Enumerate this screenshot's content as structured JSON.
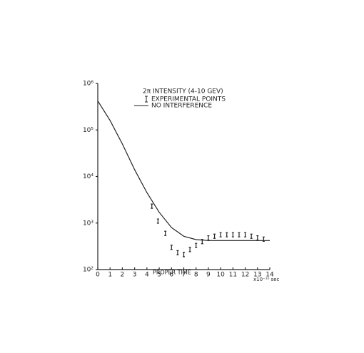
{
  "chart_data": {
    "type": "line",
    "legend_title": "2π INTENSITY (4-10 GEV)",
    "xlabel": "PROPER TIME",
    "xunit": "x10⁻¹⁰ sec",
    "xlim": [
      0,
      14
    ],
    "xticks": [
      0,
      1,
      2,
      3,
      4,
      5,
      6,
      7,
      8,
      9,
      10,
      11,
      12,
      13,
      14
    ],
    "ylim": [
      100,
      1000000
    ],
    "yticks": [
      {
        "value": 100,
        "label": "10²"
      },
      {
        "value": 1000,
        "label": "10³"
      },
      {
        "value": 10000,
        "label": "10⁴"
      },
      {
        "value": 100000,
        "label": "10⁵"
      },
      {
        "value": 1000000,
        "label": "10⁶"
      }
    ],
    "log_y": true,
    "series": [
      {
        "name": "NO INTERFERENCE",
        "style": "line",
        "color": "#222",
        "x": [
          0,
          1,
          2,
          3,
          4,
          5,
          6,
          7,
          8,
          9,
          10,
          11,
          12,
          13,
          14
        ],
        "values": [
          420000,
          160000,
          50000,
          14000,
          4500,
          1700,
          800,
          520,
          440,
          420,
          420,
          420,
          420,
          420,
          420
        ]
      },
      {
        "name": "EXPERIMENTAL POINTS",
        "style": "points",
        "color": "#222",
        "x": [
          4.4,
          4.9,
          5.5,
          6.0,
          6.5,
          7.0,
          7.5,
          8.0,
          8.5,
          9.0,
          9.5,
          10.0,
          10.5,
          11.0,
          11.5,
          12.0,
          12.5,
          13.0,
          13.5
        ],
        "values": [
          2300,
          1100,
          600,
          300,
          230,
          210,
          270,
          330,
          400,
          480,
          520,
          560,
          560,
          560,
          560,
          560,
          520,
          480,
          450
        ]
      }
    ]
  }
}
